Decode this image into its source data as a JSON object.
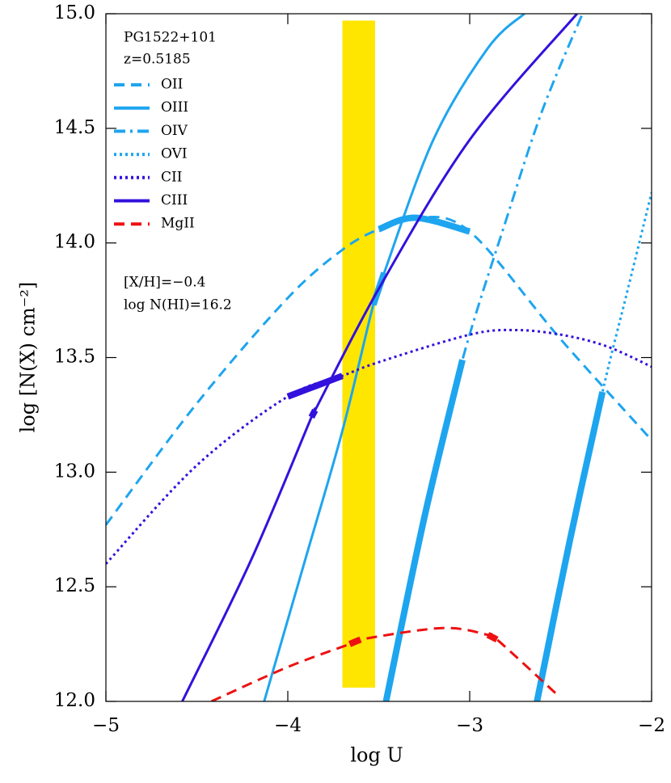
{
  "chart_data": {
    "type": "line",
    "xlabel": "log U",
    "ylabel": "log [N(X) cm⁻²]",
    "annotations": [
      "PG1522+101",
      "z=0.5185",
      "[X/H]=−0.4",
      "log N(HI)=16.2"
    ],
    "xlim": [
      -5,
      -2
    ],
    "ylim": [
      12,
      15
    ],
    "xticks": [
      {
        "value": -5,
        "label": "−5"
      },
      {
        "value": -4,
        "label": "−4"
      },
      {
        "value": -3,
        "label": "−3"
      },
      {
        "value": -2,
        "label": "−2"
      }
    ],
    "yticks": [
      {
        "value": 12,
        "label": "12.0"
      },
      {
        "value": 12.5,
        "label": "12.5"
      },
      {
        "value": 13,
        "label": "13.0"
      },
      {
        "value": 13.5,
        "label": "13.5"
      },
      {
        "value": 14,
        "label": "14.0"
      },
      {
        "value": 14.5,
        "label": "14.5"
      },
      {
        "value": 15,
        "label": "15.0"
      }
    ],
    "legend": "upper left",
    "band": {
      "xlim": [
        -3.7,
        -3.52
      ],
      "ylim": [
        12.06,
        14.97
      ],
      "color": "#ffe600"
    },
    "series": [
      {
        "name": "OII",
        "color": "#1ea5ef",
        "style": "dashed",
        "x": [
          -5,
          -4.5,
          -4,
          -3.7,
          -3.5,
          -3.3,
          -3.0,
          -2.5,
          -2.0
        ],
        "values": [
          12.77,
          13.3,
          13.76,
          13.97,
          14.06,
          14.11,
          14.05,
          13.58,
          13.14
        ],
        "highlight": [
          [
            -3.5,
            -3.0
          ]
        ]
      },
      {
        "name": "OIII",
        "color": "#1ea5ef",
        "style": "solid",
        "x": [
          -4.13,
          -3.9,
          -3.7,
          -3.53,
          -3.47,
          -3.2,
          -2.9,
          -2.7
        ],
        "values": [
          12.0,
          12.63,
          13.18,
          13.73,
          13.87,
          14.45,
          14.85,
          15.0
        ],
        "highlight": [
          [
            -3.53,
            -3.47
          ]
        ]
      },
      {
        "name": "OIV",
        "color": "#1ea5ef",
        "style": "dashdot",
        "x": [
          -3.46,
          -3.25,
          -3.04,
          -2.8,
          -2.6,
          -2.38
        ],
        "values": [
          12.0,
          12.8,
          13.49,
          14.1,
          14.58,
          15.0
        ],
        "highlight": [
          [
            -3.46,
            -3.04
          ]
        ]
      },
      {
        "name": "OVI",
        "color": "#1ea5ef",
        "style": "dotted",
        "x": [
          -2.63,
          -2.45,
          -2.27,
          -2.13,
          -2.0
        ],
        "values": [
          12.0,
          12.7,
          13.35,
          13.8,
          14.22
        ],
        "highlight": [
          [
            -2.63,
            -2.27
          ]
        ]
      },
      {
        "name": "CII",
        "color": "#3311dd",
        "style": "dotted",
        "x": [
          -5,
          -4.5,
          -4,
          -3.7,
          -3.5,
          -3,
          -2.75,
          -2.5,
          -2.25,
          -2
        ],
        "values": [
          12.6,
          13.03,
          13.33,
          13.42,
          13.48,
          13.6,
          13.62,
          13.6,
          13.55,
          13.46
        ],
        "highlight": [
          [
            -4,
            -3.7
          ]
        ]
      },
      {
        "name": "CIII",
        "color": "#3311dd",
        "style": "solid",
        "x": [
          -4.58,
          -4.2,
          -3.87,
          -3.85,
          -3.5,
          -3.0,
          -2.41
        ],
        "values": [
          12.0,
          12.62,
          13.24,
          13.27,
          13.8,
          14.45,
          15.0
        ],
        "highlight": [
          [
            -3.87,
            -3.85
          ]
        ]
      },
      {
        "name": "MgII",
        "color": "#ee1111",
        "style": "dashed",
        "x": [
          -4.42,
          -4.0,
          -3.66,
          -3.6,
          -3.15,
          -2.9,
          -2.85,
          -2.52
        ],
        "values": [
          12.0,
          12.15,
          12.25,
          12.27,
          12.32,
          12.29,
          12.27,
          12.03
        ],
        "highlight": [
          [
            -3.66,
            -3.6
          ],
          [
            -2.9,
            -2.85
          ]
        ]
      }
    ]
  }
}
